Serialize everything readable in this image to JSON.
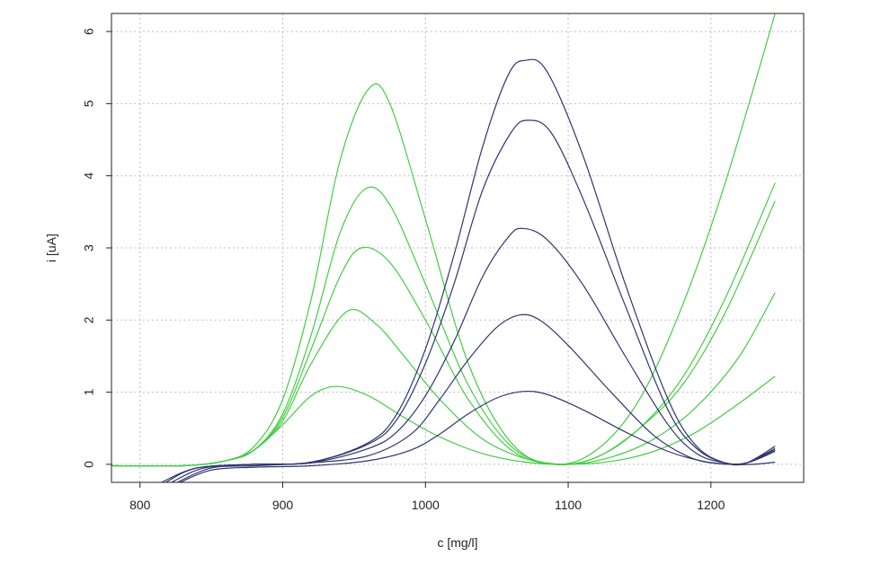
{
  "chart_data": {
    "type": "line",
    "xlabel": "c [mg/l]",
    "ylabel": "i [uA]",
    "xlim": [
      780,
      1265
    ],
    "ylim": [
      -0.25,
      6.25
    ],
    "xticks": [
      800,
      900,
      1000,
      1100,
      1200
    ],
    "yticks": [
      0,
      1,
      2,
      3,
      4,
      5,
      6
    ],
    "grid": true,
    "colors": {
      "green": "#44cc44",
      "navy": "#2e3570"
    },
    "series": [
      {
        "color": "green",
        "points": [
          [
            780,
            -0.02
          ],
          [
            830,
            -0.02
          ],
          [
            860,
            0.05
          ],
          [
            880,
            0.25
          ],
          [
            900,
            0.9
          ],
          [
            920,
            2.3
          ],
          [
            940,
            4.2
          ],
          [
            960,
            5.2
          ],
          [
            975,
            5.0
          ],
          [
            1000,
            3.4
          ],
          [
            1030,
            1.4
          ],
          [
            1060,
            0.3
          ],
          [
            1090,
            0.0
          ],
          [
            1120,
            0.2
          ],
          [
            1150,
            0.9
          ],
          [
            1180,
            2.2
          ],
          [
            1210,
            3.9
          ],
          [
            1245,
            6.25
          ]
        ]
      },
      {
        "color": "green",
        "points": [
          [
            780,
            -0.02
          ],
          [
            830,
            -0.02
          ],
          [
            860,
            0.05
          ],
          [
            880,
            0.2
          ],
          [
            900,
            0.7
          ],
          [
            920,
            1.8
          ],
          [
            940,
            3.2
          ],
          [
            958,
            3.82
          ],
          [
            975,
            3.6
          ],
          [
            1000,
            2.5
          ],
          [
            1030,
            1.1
          ],
          [
            1060,
            0.25
          ],
          [
            1090,
            0.0
          ],
          [
            1120,
            0.1
          ],
          [
            1150,
            0.5
          ],
          [
            1180,
            1.2
          ],
          [
            1210,
            2.3
          ],
          [
            1245,
            3.9
          ]
        ]
      },
      {
        "color": "green",
        "points": [
          [
            780,
            -0.02
          ],
          [
            830,
            -0.02
          ],
          [
            860,
            0.05
          ],
          [
            880,
            0.2
          ],
          [
            900,
            0.65
          ],
          [
            920,
            1.6
          ],
          [
            940,
            2.6
          ],
          [
            955,
            3.0
          ],
          [
            975,
            2.8
          ],
          [
            1000,
            2.0
          ],
          [
            1030,
            0.9
          ],
          [
            1060,
            0.2
          ],
          [
            1090,
            0.0
          ],
          [
            1120,
            0.1
          ],
          [
            1150,
            0.5
          ],
          [
            1180,
            1.1
          ],
          [
            1210,
            2.1
          ],
          [
            1245,
            3.65
          ]
        ]
      },
      {
        "color": "green",
        "points": [
          [
            780,
            -0.02
          ],
          [
            830,
            -0.02
          ],
          [
            860,
            0.05
          ],
          [
            880,
            0.2
          ],
          [
            900,
            0.6
          ],
          [
            920,
            1.4
          ],
          [
            945,
            2.12
          ],
          [
            965,
            1.95
          ],
          [
            985,
            1.5
          ],
          [
            1010,
            0.9
          ],
          [
            1040,
            0.35
          ],
          [
            1070,
            0.08
          ],
          [
            1100,
            0.0
          ],
          [
            1130,
            0.1
          ],
          [
            1160,
            0.35
          ],
          [
            1190,
            0.8
          ],
          [
            1220,
            1.5
          ],
          [
            1245,
            2.38
          ]
        ]
      },
      {
        "color": "green",
        "points": [
          [
            780,
            -0.02
          ],
          [
            830,
            -0.02
          ],
          [
            860,
            0.05
          ],
          [
            880,
            0.2
          ],
          [
            900,
            0.55
          ],
          [
            920,
            0.95
          ],
          [
            938,
            1.08
          ],
          [
            960,
            0.95
          ],
          [
            985,
            0.65
          ],
          [
            1010,
            0.38
          ],
          [
            1040,
            0.15
          ],
          [
            1070,
            0.03
          ],
          [
            1100,
            0.0
          ],
          [
            1130,
            0.04
          ],
          [
            1160,
            0.18
          ],
          [
            1190,
            0.45
          ],
          [
            1220,
            0.85
          ],
          [
            1245,
            1.22
          ]
        ]
      },
      {
        "color": "navy",
        "points": [
          [
            815,
            -0.25
          ],
          [
            840,
            -0.05
          ],
          [
            880,
            0.0
          ],
          [
            920,
            0.03
          ],
          [
            960,
            0.3
          ],
          [
            980,
            0.7
          ],
          [
            1000,
            1.6
          ],
          [
            1020,
            2.9
          ],
          [
            1040,
            4.4
          ],
          [
            1058,
            5.4
          ],
          [
            1070,
            5.6
          ],
          [
            1085,
            5.45
          ],
          [
            1110,
            4.3
          ],
          [
            1140,
            2.5
          ],
          [
            1170,
            0.9
          ],
          [
            1190,
            0.25
          ],
          [
            1210,
            0.02
          ],
          [
            1225,
            0.02
          ],
          [
            1245,
            0.25
          ]
        ]
      },
      {
        "color": "navy",
        "points": [
          [
            818,
            -0.25
          ],
          [
            840,
            -0.05
          ],
          [
            880,
            0.0
          ],
          [
            920,
            0.03
          ],
          [
            960,
            0.28
          ],
          [
            980,
            0.62
          ],
          [
            1000,
            1.4
          ],
          [
            1020,
            2.5
          ],
          [
            1040,
            3.8
          ],
          [
            1060,
            4.6
          ],
          [
            1072,
            4.77
          ],
          [
            1088,
            4.6
          ],
          [
            1110,
            3.7
          ],
          [
            1140,
            2.2
          ],
          [
            1170,
            0.75
          ],
          [
            1190,
            0.22
          ],
          [
            1210,
            0.02
          ],
          [
            1225,
            0.02
          ],
          [
            1245,
            0.22
          ]
        ]
      },
      {
        "color": "navy",
        "points": [
          [
            822,
            -0.25
          ],
          [
            845,
            -0.05
          ],
          [
            880,
            0.0
          ],
          [
            920,
            0.02
          ],
          [
            960,
            0.22
          ],
          [
            980,
            0.45
          ],
          [
            1000,
            0.95
          ],
          [
            1020,
            1.7
          ],
          [
            1040,
            2.6
          ],
          [
            1058,
            3.15
          ],
          [
            1068,
            3.27
          ],
          [
            1085,
            3.12
          ],
          [
            1110,
            2.5
          ],
          [
            1140,
            1.5
          ],
          [
            1170,
            0.55
          ],
          [
            1190,
            0.15
          ],
          [
            1210,
            0.02
          ],
          [
            1225,
            0.02
          ],
          [
            1245,
            0.2
          ]
        ]
      },
      {
        "color": "navy",
        "points": [
          [
            826,
            -0.25
          ],
          [
            850,
            -0.05
          ],
          [
            880,
            -0.02
          ],
          [
            920,
            0.02
          ],
          [
            960,
            0.12
          ],
          [
            990,
            0.42
          ],
          [
            1010,
            0.9
          ],
          [
            1030,
            1.45
          ],
          [
            1050,
            1.9
          ],
          [
            1066,
            2.07
          ],
          [
            1080,
            2.0
          ],
          [
            1100,
            1.65
          ],
          [
            1130,
            1.0
          ],
          [
            1160,
            0.4
          ],
          [
            1185,
            0.1
          ],
          [
            1205,
            0.01
          ],
          [
            1225,
            0.02
          ],
          [
            1245,
            0.18
          ]
        ]
      },
      {
        "color": "navy",
        "points": [
          [
            828,
            -0.25
          ],
          [
            850,
            -0.08
          ],
          [
            880,
            -0.04
          ],
          [
            920,
            -0.02
          ],
          [
            960,
            0.05
          ],
          [
            990,
            0.2
          ],
          [
            1010,
            0.42
          ],
          [
            1030,
            0.7
          ],
          [
            1050,
            0.92
          ],
          [
            1068,
            1.01
          ],
          [
            1085,
            0.97
          ],
          [
            1110,
            0.76
          ],
          [
            1140,
            0.45
          ],
          [
            1170,
            0.18
          ],
          [
            1195,
            0.04
          ],
          [
            1215,
            0.0
          ],
          [
            1230,
            0.0
          ],
          [
            1245,
            0.03
          ]
        ]
      }
    ]
  }
}
